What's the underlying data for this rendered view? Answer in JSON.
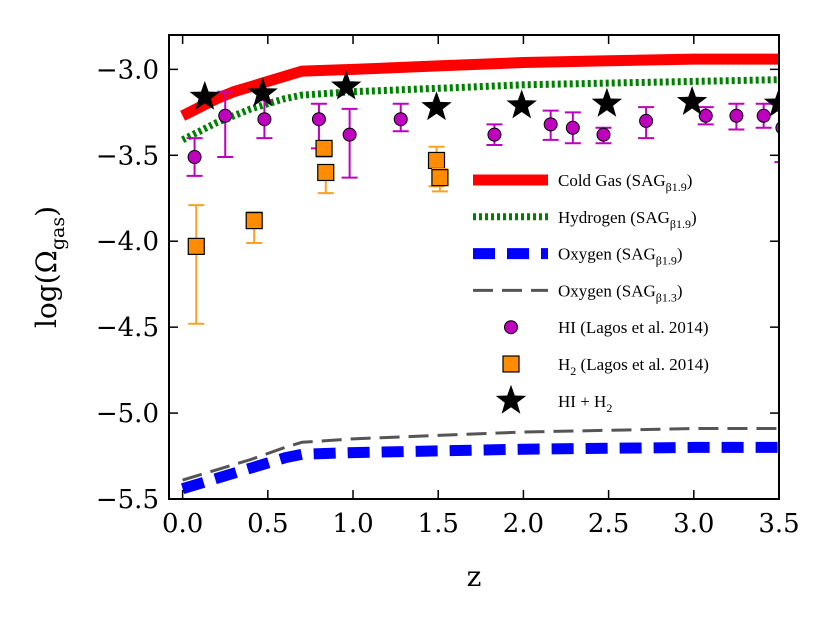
{
  "chart_data": {
    "type": "line",
    "title": "",
    "xlabel": "z",
    "ylabel": {
      "base": "log(Ω",
      "sub": "gas",
      "close": ")"
    },
    "xlim": [
      -0.08,
      3.5
    ],
    "ylim": [
      -5.5,
      -2.8
    ],
    "xticks": [
      0.0,
      0.5,
      1.0,
      1.5,
      2.0,
      2.5,
      3.0,
      3.5
    ],
    "xtick_labels": [
      "0.0",
      "0.5",
      "1.0",
      "1.5",
      "2.0",
      "2.5",
      "3.0",
      "3.5"
    ],
    "yticks": [
      -3.0,
      -3.5,
      -4.0,
      -4.5,
      -5.0,
      -5.5
    ],
    "ytick_labels": [
      "−3.0",
      "−3.5",
      "−4.0",
      "−4.5",
      "−5.0",
      "−5.5"
    ],
    "legend_position": "right",
    "series": [
      {
        "name": "cold-gas",
        "kind": "line",
        "style": "solid",
        "color": "#ff0000",
        "label": {
          "pre": "Cold Gas (SAG",
          "sub": "β1.9",
          "post": ")"
        },
        "x": [
          0.0,
          0.1,
          0.2,
          0.3,
          0.4,
          0.5,
          0.6,
          0.7,
          1.0,
          1.5,
          2.0,
          2.5,
          3.0,
          3.5
        ],
        "y": [
          -3.27,
          -3.22,
          -3.17,
          -3.13,
          -3.1,
          -3.07,
          -3.04,
          -3.01,
          -3.0,
          -2.98,
          -2.96,
          -2.95,
          -2.94,
          -2.94
        ]
      },
      {
        "name": "hydrogen",
        "kind": "line",
        "style": "dotted",
        "color": "#008000",
        "label": {
          "pre": "Hydrogen (SAG",
          "sub": "β1.9",
          "post": ")"
        },
        "x": [
          0.0,
          0.1,
          0.2,
          0.3,
          0.4,
          0.5,
          0.6,
          0.7,
          1.0,
          1.5,
          2.0,
          2.5,
          3.0,
          3.5
        ],
        "y": [
          -3.41,
          -3.36,
          -3.31,
          -3.27,
          -3.23,
          -3.2,
          -3.17,
          -3.15,
          -3.13,
          -3.11,
          -3.09,
          -3.08,
          -3.07,
          -3.06
        ]
      },
      {
        "name": "oxygen-b19",
        "kind": "line",
        "style": "dashed-thick",
        "color": "#0000ff",
        "label": {
          "pre": "Oxygen (SAG",
          "sub": "β1.9",
          "post": ")"
        },
        "x": [
          0.0,
          0.2,
          0.4,
          0.6,
          0.7,
          1.0,
          1.5,
          2.0,
          2.5,
          3.0,
          3.5
        ],
        "y": [
          -5.44,
          -5.38,
          -5.32,
          -5.26,
          -5.24,
          -5.23,
          -5.22,
          -5.21,
          -5.205,
          -5.2,
          -5.2
        ]
      },
      {
        "name": "oxygen-b13",
        "kind": "line",
        "style": "dashed-thin",
        "color": "#555555",
        "label": {
          "pre": "Oxygen (SAG",
          "sub": "β1.3",
          "post": ")"
        },
        "x": [
          0.0,
          0.2,
          0.4,
          0.6,
          0.7,
          1.0,
          1.5,
          2.0,
          2.5,
          3.0,
          3.5
        ],
        "y": [
          -5.39,
          -5.33,
          -5.27,
          -5.2,
          -5.17,
          -5.15,
          -5.13,
          -5.11,
          -5.1,
          -5.09,
          -5.09
        ]
      },
      {
        "name": "hi-lagos",
        "kind": "scatter",
        "marker": "circle",
        "color": "#bf00bf",
        "errcolor": "#bf00bf",
        "label": {
          "pre": "HI (Lagos et al. 2014)",
          "sub": "",
          "post": ""
        },
        "x": [
          0.07,
          0.25,
          0.48,
          0.8,
          0.98,
          1.28,
          1.83,
          2.16,
          2.29,
          2.47,
          2.72,
          3.07,
          3.25,
          3.41,
          3.52
        ],
        "y": [
          -3.51,
          -3.27,
          -3.29,
          -3.29,
          -3.38,
          -3.29,
          -3.38,
          -3.32,
          -3.34,
          -3.38,
          -3.3,
          -3.27,
          -3.27,
          -3.27,
          -3.34
        ],
        "err_lo": [
          0.11,
          0.24,
          0.11,
          0.17,
          0.25,
          0.07,
          0.06,
          0.09,
          0.09,
          0.05,
          0.1,
          0.05,
          0.08,
          0.07,
          0.2
        ],
        "err_hi": [
          0.11,
          0.14,
          0.11,
          0.09,
          0.15,
          0.09,
          0.06,
          0.08,
          0.09,
          0.04,
          0.08,
          0.05,
          0.07,
          0.07,
          0.1
        ]
      },
      {
        "name": "h2-lagos",
        "kind": "scatter",
        "marker": "square",
        "color": "#ff8c00",
        "errcolor": "#ffa020",
        "label": {
          "pre": "H",
          "sub": "2",
          "post": "  (Lagos et al. 2014)"
        },
        "x": [
          0.08,
          0.42,
          0.83,
          0.84,
          1.49,
          1.51
        ],
        "y": [
          -4.03,
          -3.88,
          -3.46,
          -3.6,
          -3.53,
          -3.63
        ],
        "err_lo": [
          0.45,
          0.13,
          0.05,
          0.12,
          0.15,
          0.08
        ],
        "err_hi": [
          0.24,
          0.05,
          0.03,
          0.02,
          0.08,
          0.05
        ]
      },
      {
        "name": "hi-plus-h2",
        "kind": "scatter",
        "marker": "star",
        "color": "#000000",
        "label": {
          "pre": "HI + H",
          "sub": "2",
          "post": ""
        },
        "x": [
          0.13,
          0.47,
          0.96,
          1.49,
          1.99,
          2.49,
          2.99,
          3.5
        ],
        "y": [
          -3.16,
          -3.14,
          -3.1,
          -3.22,
          -3.21,
          -3.2,
          -3.19,
          -3.2
        ]
      }
    ]
  }
}
